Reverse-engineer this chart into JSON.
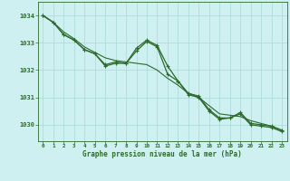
{
  "background_color": "#cff0f0",
  "grid_color": "#a8d8d8",
  "line_color": "#2d6a2d",
  "title": "Graphe pression niveau de la mer (hPa)",
  "ylabel_ticks": [
    1030,
    1031,
    1032,
    1033,
    1034
  ],
  "xlim": [
    -0.5,
    23.5
  ],
  "ylim": [
    1029.4,
    1034.5
  ],
  "smooth_line": [
    [
      0,
      1034.0
    ],
    [
      1,
      1033.75
    ],
    [
      2,
      1033.4
    ],
    [
      3,
      1033.15
    ],
    [
      4,
      1032.85
    ],
    [
      5,
      1032.65
    ],
    [
      6,
      1032.45
    ],
    [
      7,
      1032.35
    ],
    [
      8,
      1032.3
    ],
    [
      9,
      1032.25
    ],
    [
      10,
      1032.2
    ],
    [
      11,
      1032.0
    ],
    [
      12,
      1031.7
    ],
    [
      13,
      1031.45
    ],
    [
      14,
      1031.15
    ],
    [
      15,
      1031.0
    ],
    [
      16,
      1030.7
    ],
    [
      17,
      1030.4
    ],
    [
      18,
      1030.35
    ],
    [
      19,
      1030.3
    ],
    [
      20,
      1030.15
    ],
    [
      21,
      1030.05
    ],
    [
      22,
      1029.95
    ],
    [
      23,
      1029.8
    ]
  ],
  "series1": [
    [
      0,
      1034.0
    ],
    [
      1,
      1033.75
    ],
    [
      2,
      1033.3
    ],
    [
      3,
      1033.1
    ],
    [
      4,
      1032.75
    ],
    [
      5,
      1032.6
    ],
    [
      6,
      1032.2
    ],
    [
      7,
      1032.3
    ],
    [
      8,
      1032.25
    ],
    [
      9,
      1032.8
    ],
    [
      10,
      1033.1
    ],
    [
      11,
      1032.9
    ],
    [
      12,
      1032.15
    ],
    [
      13,
      1031.6
    ],
    [
      14,
      1031.15
    ],
    [
      15,
      1031.05
    ],
    [
      16,
      1030.55
    ],
    [
      17,
      1030.25
    ],
    [
      18,
      1030.25
    ],
    [
      19,
      1030.45
    ],
    [
      20,
      1030.05
    ],
    [
      21,
      1030.0
    ],
    [
      22,
      1029.95
    ],
    [
      23,
      1029.8
    ]
  ],
  "series2": [
    [
      0,
      1034.0
    ],
    [
      1,
      1033.75
    ],
    [
      2,
      1033.3
    ],
    [
      3,
      1033.1
    ],
    [
      4,
      1032.75
    ],
    [
      5,
      1032.6
    ],
    [
      6,
      1032.15
    ],
    [
      7,
      1032.25
    ],
    [
      8,
      1032.25
    ],
    [
      9,
      1032.7
    ],
    [
      10,
      1033.05
    ],
    [
      11,
      1032.85
    ],
    [
      12,
      1031.85
    ],
    [
      13,
      1031.6
    ],
    [
      14,
      1031.1
    ],
    [
      15,
      1031.0
    ],
    [
      16,
      1030.5
    ],
    [
      17,
      1030.2
    ],
    [
      18,
      1030.25
    ],
    [
      19,
      1030.4
    ],
    [
      20,
      1030.0
    ],
    [
      21,
      1029.95
    ],
    [
      22,
      1029.9
    ],
    [
      23,
      1029.75
    ]
  ],
  "xtick_labels": [
    "0",
    "1",
    "2",
    "3",
    "4",
    "5",
    "6",
    "7",
    "8",
    "9",
    "10",
    "11",
    "12",
    "13",
    "14",
    "15",
    "16",
    "17",
    "18",
    "19",
    "20",
    "21",
    "22",
    "23"
  ]
}
